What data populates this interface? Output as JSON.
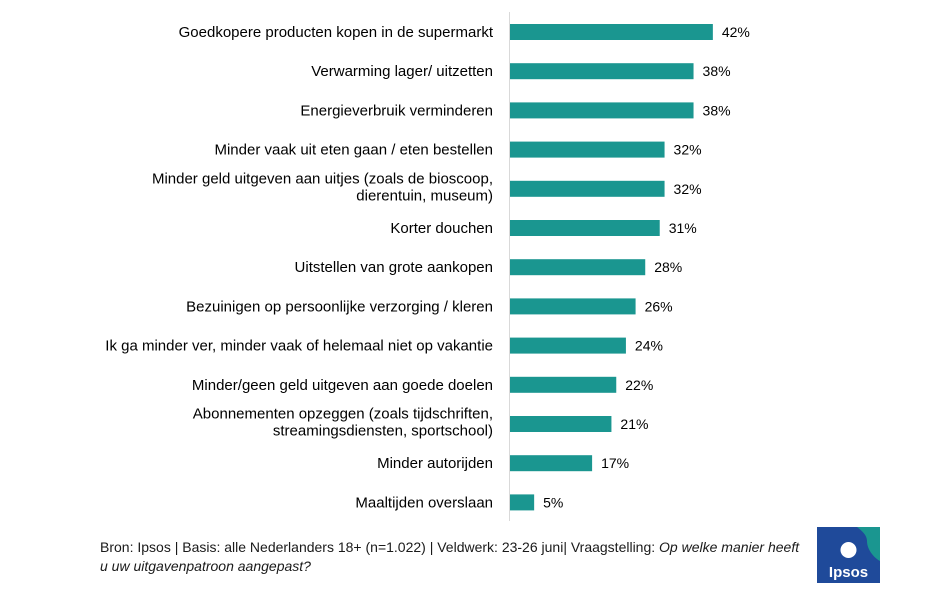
{
  "chart_data": {
    "type": "bar",
    "orientation": "horizontal",
    "categories": [
      [
        "Goedkopere producten kopen in de supermarkt"
      ],
      [
        "Verwarming lager/ uitzetten"
      ],
      [
        "Energieverbruik verminderen"
      ],
      [
        "Minder vaak uit eten gaan / eten bestellen"
      ],
      [
        "Minder geld uitgeven aan uitjes (zoals de bioscoop,",
        "dierentuin, museum)"
      ],
      [
        "Korter douchen"
      ],
      [
        "Uitstellen van grote aankopen"
      ],
      [
        "Bezuinigen op persoonlijke verzorging / kleren"
      ],
      [
        "Ik ga minder ver, minder vaak of helemaal niet op vakantie"
      ],
      [
        "Minder/geen geld uitgeven aan goede doelen"
      ],
      [
        "Abonnementen opzeggen (zoals tijdschriften,",
        "streamingsdiensten, sportschool)"
      ],
      [
        "Minder autorijden"
      ],
      [
        "Maaltijden overslaan"
      ]
    ],
    "values": [
      42,
      38,
      38,
      32,
      32,
      31,
      28,
      26,
      24,
      22,
      21,
      17,
      5
    ],
    "value_labels": [
      "42%",
      "38%",
      "38%",
      "32%",
      "32%",
      "31%",
      "28%",
      "26%",
      "24%",
      "22%",
      "21%",
      "17%",
      "5%"
    ],
    "xlim": [
      0,
      100
    ],
    "bar_color": "#1a9690",
    "grid": false,
    "legend": "none"
  },
  "footer": {
    "source": "Bron: Ipsos | Basis: alle Nederlanders 18+ (n=1.022) | Veldwerk: 23-26 juni| Vraagstelling: ",
    "question": "Op welke manier heeft u uw uitgavenpatroon aangepast?"
  },
  "logo": {
    "text": "Ipsos",
    "color_blue": "#1f4a9a",
    "color_teal": "#1a9690"
  }
}
